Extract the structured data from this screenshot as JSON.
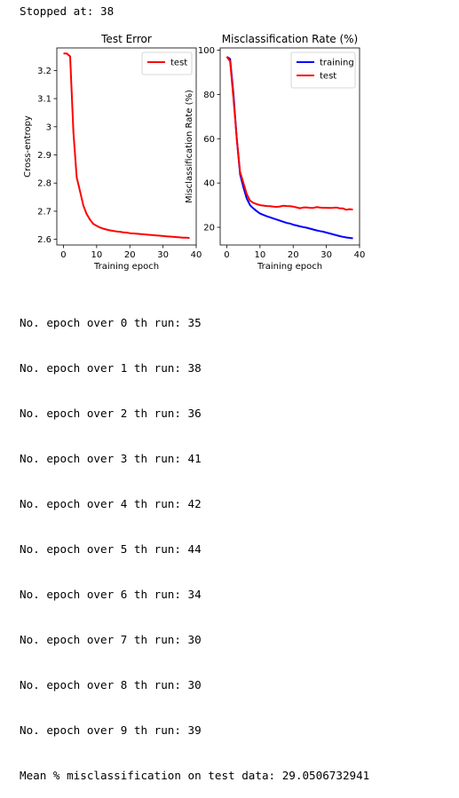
{
  "header": {
    "stopped_text": "Stopped at: 38"
  },
  "chart_data": [
    {
      "type": "line",
      "title": "Test Error",
      "xlabel": "Training epoch",
      "ylabel": "Cross-entropy",
      "xlim": [
        -2,
        40
      ],
      "ylim": [
        2.58,
        3.28
      ],
      "xticks": [
        0,
        10,
        20,
        30,
        40
      ],
      "yticks": [
        2.6,
        2.7,
        2.8,
        2.9,
        3.0,
        3.1,
        3.2
      ],
      "grid": false,
      "legend": "top-right",
      "series": [
        {
          "name": "test",
          "color": "#ff0000",
          "x": [
            0,
            1,
            2,
            3,
            4,
            5,
            6,
            7,
            8,
            9,
            10,
            11,
            12,
            13,
            14,
            15,
            16,
            17,
            18,
            19,
            20,
            21,
            22,
            23,
            24,
            25,
            26,
            27,
            28,
            29,
            30,
            31,
            32,
            33,
            34,
            35,
            36,
            37,
            38
          ],
          "values": [
            3.26,
            3.26,
            3.25,
            2.98,
            2.82,
            2.77,
            2.72,
            2.69,
            2.67,
            2.655,
            2.648,
            2.642,
            2.638,
            2.635,
            2.632,
            2.63,
            2.628,
            2.627,
            2.625,
            2.624,
            2.622,
            2.621,
            2.62,
            2.619,
            2.618,
            2.617,
            2.616,
            2.615,
            2.614,
            2.613,
            2.612,
            2.611,
            2.61,
            2.609,
            2.608,
            2.607,
            2.606,
            2.606,
            2.605
          ]
        }
      ]
    },
    {
      "type": "line",
      "title": "Misclassification Rate (%)",
      "xlabel": "Training epoch",
      "ylabel": "Misclassification Rate (%)",
      "xlim": [
        -2,
        40
      ],
      "ylim": [
        12,
        101
      ],
      "xticks": [
        0,
        10,
        20,
        30,
        40
      ],
      "yticks": [
        20,
        40,
        60,
        80,
        100
      ],
      "grid": false,
      "legend": "top-right",
      "series": [
        {
          "name": "training",
          "color": "#0000ff",
          "x": [
            0,
            1,
            2,
            3,
            4,
            5,
            6,
            7,
            8,
            9,
            10,
            11,
            12,
            13,
            14,
            15,
            16,
            17,
            18,
            19,
            20,
            21,
            22,
            23,
            24,
            25,
            26,
            27,
            28,
            29,
            30,
            31,
            32,
            33,
            34,
            35,
            36,
            37,
            38
          ],
          "values": [
            97,
            96,
            80,
            60,
            44,
            38,
            33,
            30,
            28.5,
            27.3,
            26.2,
            25.6,
            25.0,
            24.5,
            24.0,
            23.5,
            23.0,
            22.5,
            22.0,
            21.7,
            21.2,
            20.8,
            20.4,
            20.1,
            19.8,
            19.4,
            19.0,
            18.6,
            18.3,
            18.0,
            17.6,
            17.2,
            16.8,
            16.4,
            16.0,
            15.7,
            15.4,
            15.2,
            15.0
          ]
        },
        {
          "name": "test",
          "color": "#ff0000",
          "x": [
            0,
            1,
            2,
            3,
            4,
            5,
            6,
            7,
            8,
            9,
            10,
            11,
            12,
            13,
            14,
            15,
            16,
            17,
            18,
            19,
            20,
            21,
            22,
            23,
            24,
            25,
            26,
            27,
            28,
            29,
            30,
            31,
            32,
            33,
            34,
            35,
            36,
            37,
            38
          ],
          "values": [
            97,
            95,
            78,
            60,
            45,
            40,
            35,
            32,
            31,
            30.5,
            30,
            29.8,
            29.6,
            29.5,
            29.3,
            29.2,
            29.4,
            29.7,
            29.6,
            29.5,
            29.3,
            29.0,
            28.6,
            28.9,
            29.0,
            28.8,
            28.7,
            29.1,
            28.9,
            28.8,
            28.8,
            28.7,
            28.8,
            28.9,
            28.6,
            28.5,
            27.9,
            28.2,
            28.0
          ]
        }
      ]
    }
  ],
  "log": {
    "lines": [
      "No. epoch over 0 th run: 35",
      "No. epoch over 1 th run: 38",
      "No. epoch over 2 th run: 36",
      "No. epoch over 3 th run: 41",
      "No. epoch over 4 th run: 42",
      "No. epoch over 5 th run: 44",
      "No. epoch over 6 th run: 34",
      "No. epoch over 7 th run: 30",
      "No. epoch over 8 th run: 30",
      "No. epoch over 9 th run: 39"
    ],
    "summary": "Mean % misclassification on test data: 29.0506732941"
  }
}
